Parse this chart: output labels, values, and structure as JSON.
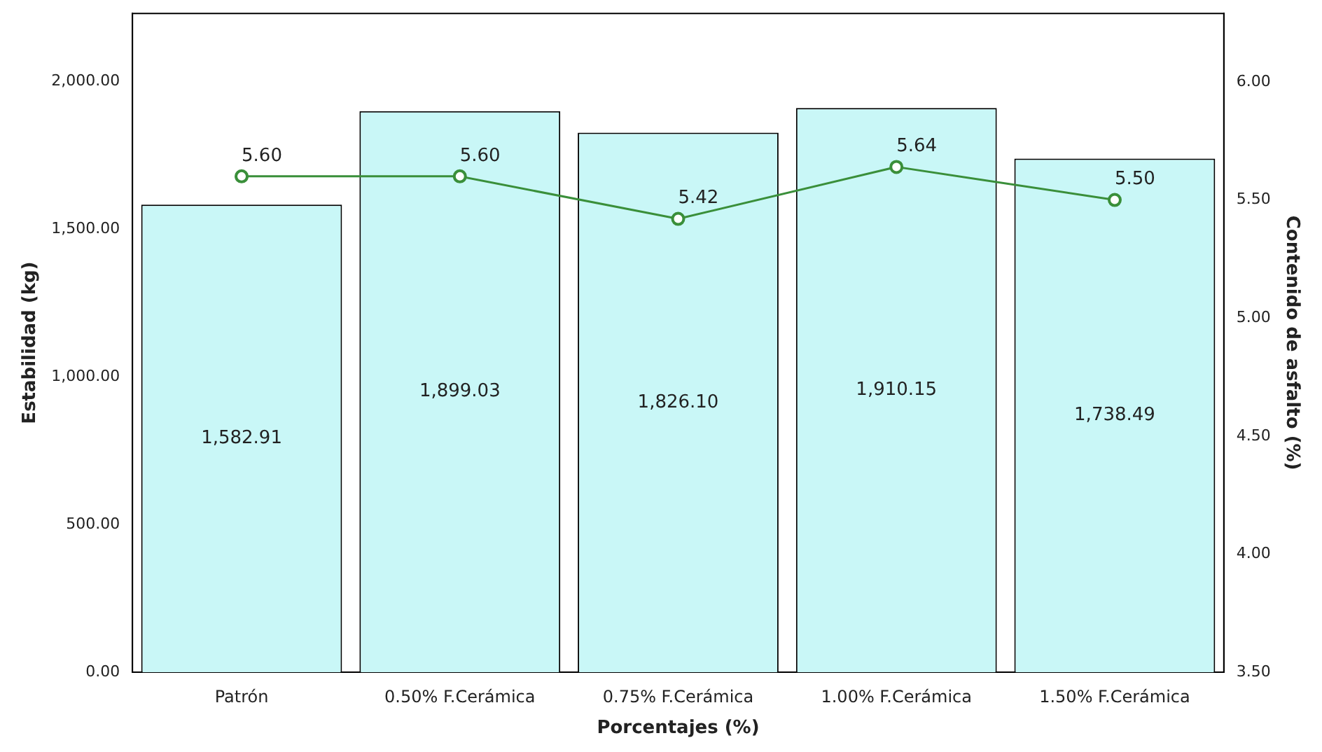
{
  "chart_data": {
    "type": "bar",
    "xlabel": "Porcentajes (%)",
    "ylabel": "Estabilidad (kg)",
    "y2label": "Contenido de asfalto (%)",
    "categories": [
      "Patrón",
      "0.50% F.Cerámica",
      "0.75% F.Cerámica",
      "1.00% F.Cerámica",
      "1.50% F.Cerámica"
    ],
    "series": [
      {
        "color": "#c9f7f7",
        "values": [
          1582.91,
          1899.03,
          1826.1,
          1910.15,
          1738.49
        ],
        "value_labels": [
          "1,582.91",
          "1,899.03",
          "1,826.10",
          "1,910.15",
          "1,738.49"
        ]
      },
      {
        "type": "line",
        "axis": "y2",
        "color": "#3a8f3a",
        "values": [
          5.6,
          5.6,
          5.42,
          5.64,
          5.5
        ],
        "value_labels": [
          "5.60",
          "5.60",
          "5.42",
          "5.64",
          "5.50"
        ]
      }
    ],
    "ylim": [
      0,
      2230
    ],
    "yticks": [
      {
        "value": 0,
        "label": "0.00"
      },
      {
        "value": 500,
        "label": "500.00"
      },
      {
        "value": 1000,
        "label": "1,000.00"
      },
      {
        "value": 1500,
        "label": "1,500.00"
      },
      {
        "value": 2000,
        "label": "2,000.00"
      }
    ],
    "y2lim": [
      3.5,
      6.29
    ],
    "y2ticks": [
      {
        "value": 3.5,
        "label": "3.50"
      },
      {
        "value": 4.0,
        "label": "4.00"
      },
      {
        "value": 4.5,
        "label": "4.50"
      },
      {
        "value": 5.0,
        "label": "5.00"
      },
      {
        "value": 5.5,
        "label": "5.50"
      },
      {
        "value": 6.0,
        "label": "6.00"
      }
    ],
    "grid": false,
    "legend": false,
    "marker": "circle",
    "line_style": "solid"
  }
}
